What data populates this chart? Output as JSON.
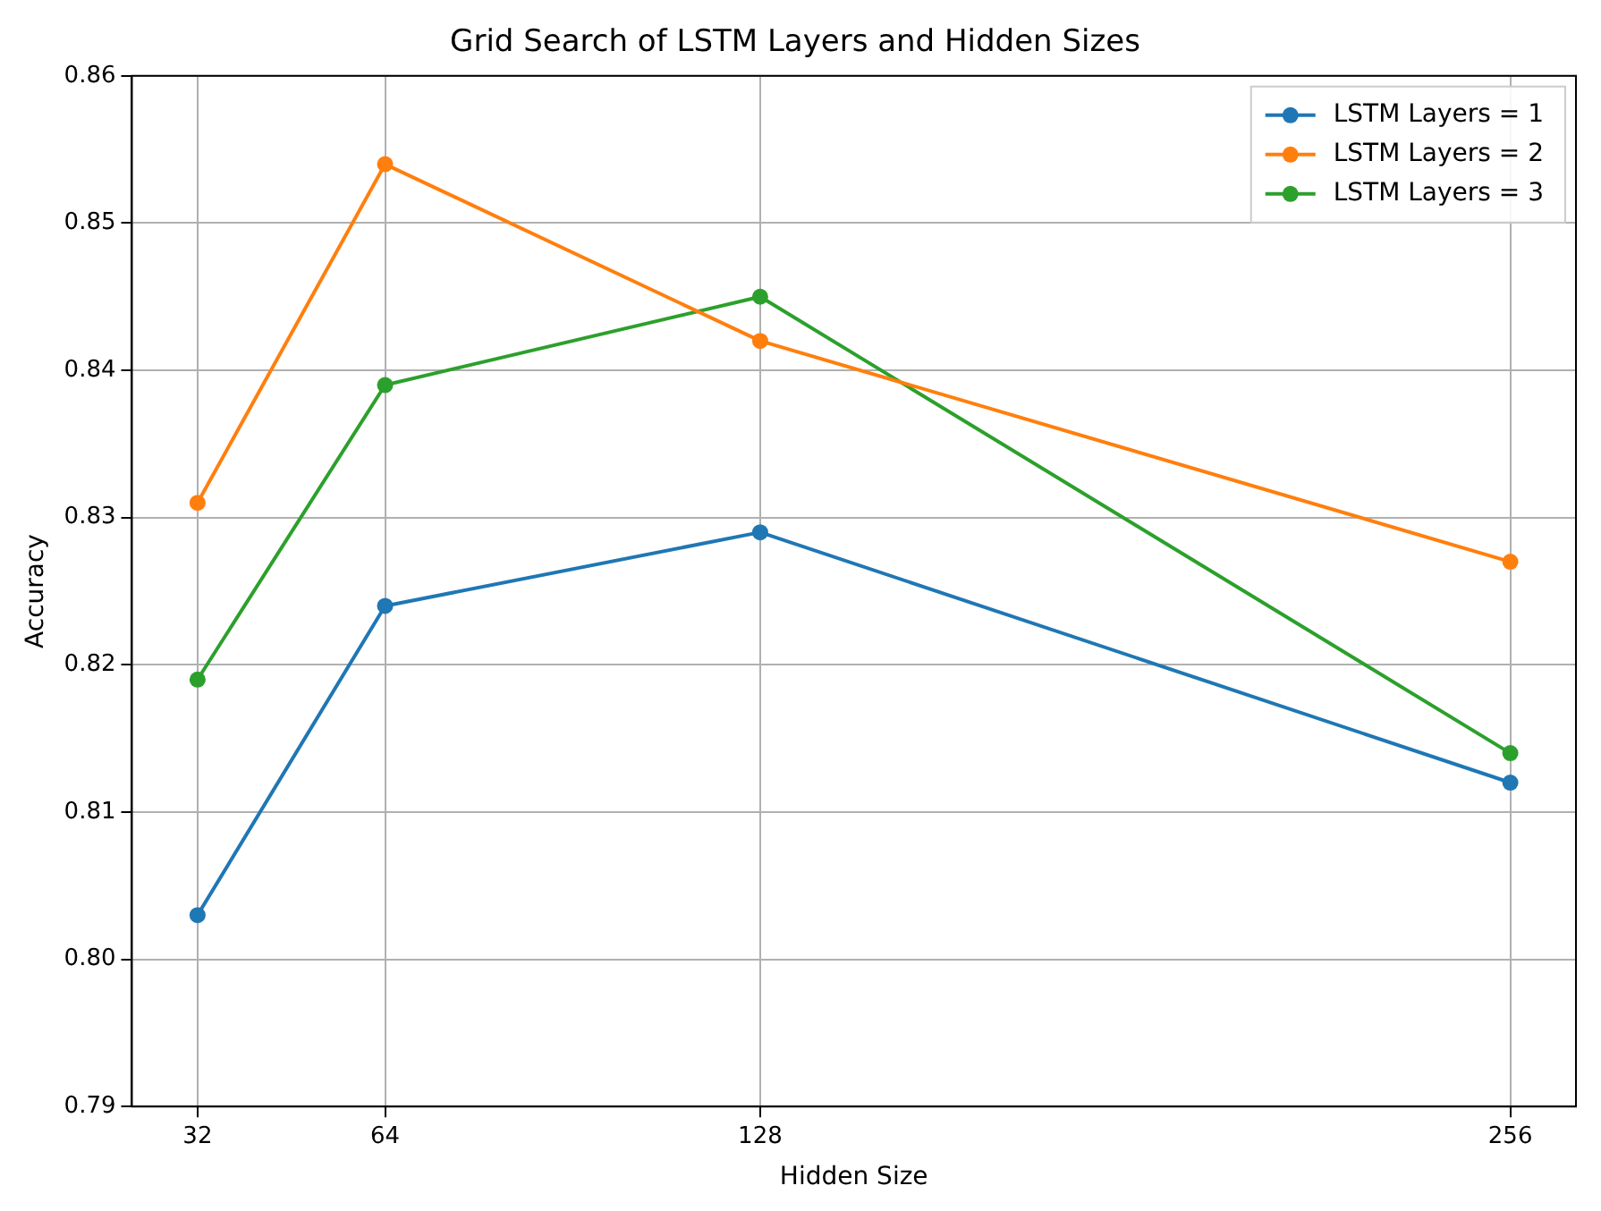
{
  "chart_data": {
    "type": "line",
    "title": "Grid Search of LSTM Layers and Hidden Sizes",
    "xlabel": "Hidden Size",
    "ylabel": "Accuracy",
    "x": [
      32,
      64,
      128,
      256
    ],
    "series": [
      {
        "name": "LSTM Layers = 1",
        "color": "#1f77b4",
        "values": [
          0.803,
          0.824,
          0.829,
          0.812
        ]
      },
      {
        "name": "LSTM Layers = 2",
        "color": "#ff7f0e",
        "values": [
          0.831,
          0.854,
          0.842,
          0.827
        ]
      },
      {
        "name": "LSTM Layers = 3",
        "color": "#2ca02c",
        "values": [
          0.819,
          0.839,
          0.845,
          0.814
        ]
      }
    ],
    "xlim": [
      20.8,
      267.2
    ],
    "xticks": [
      32,
      64,
      128,
      256
    ],
    "ylim": [
      0.79,
      0.86
    ],
    "yticks": [
      0.79,
      {
        "value": 0.8,
        "label": "0.80"
      },
      0.81,
      0.82,
      0.83,
      0.84,
      0.85,
      0.86
    ],
    "grid": true,
    "legend": "top right",
    "marker": "circle",
    "line_style": "solid"
  }
}
